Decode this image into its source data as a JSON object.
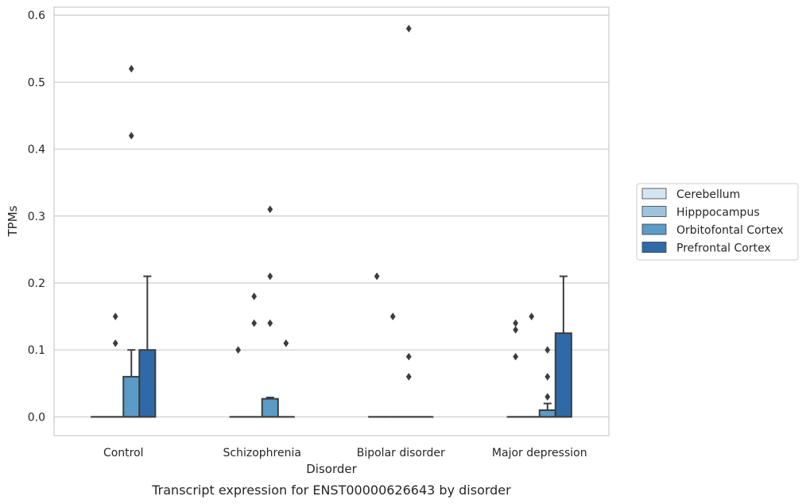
{
  "chart_data": {
    "type": "box",
    "xlabel": "Disorder",
    "ylabel": "TPMs",
    "caption": "Transcript expression for ENST00000626643 by disorder",
    "ylim": [
      -0.028,
      0.612
    ],
    "yticks": [
      "0.0",
      "0.1",
      "0.2",
      "0.3",
      "0.4",
      "0.5",
      "0.6"
    ],
    "yticks_values": [
      0.0,
      0.1,
      0.2,
      0.3,
      0.4,
      0.5,
      0.6
    ],
    "grid": "horizontal",
    "legend_position": "right",
    "categories": [
      "Control",
      "Schizophrenia",
      "Bipolar disorder",
      "Major depression"
    ],
    "series": [
      {
        "name": "Cerebellum",
        "color": "#d4e4f2",
        "boxes": [
          {
            "q1": 0,
            "median": 0,
            "q3": 0,
            "whislo": 0,
            "whishi": 0,
            "fliers": []
          },
          {
            "q1": 0,
            "median": 0,
            "q3": 0,
            "whislo": 0,
            "whishi": 0,
            "fliers": [
              0.1
            ]
          },
          {
            "q1": 0,
            "median": 0,
            "q3": 0,
            "whislo": 0,
            "whishi": 0,
            "fliers": [
              0.21
            ]
          },
          {
            "q1": 0,
            "median": 0,
            "q3": 0,
            "whislo": 0,
            "whishi": 0,
            "fliers": [
              0.14,
              0.13,
              0.09
            ]
          }
        ]
      },
      {
        "name": "Hipppocampus",
        "color": "#9ec4de",
        "boxes": [
          {
            "q1": 0,
            "median": 0,
            "q3": 0,
            "whislo": 0,
            "whishi": 0,
            "fliers": [
              0.15,
              0.11
            ]
          },
          {
            "q1": 0,
            "median": 0,
            "q3": 0,
            "whislo": 0,
            "whishi": 0,
            "fliers": [
              0.18,
              0.14
            ]
          },
          {
            "q1": 0,
            "median": 0,
            "q3": 0,
            "whislo": 0,
            "whishi": 0,
            "fliers": [
              0.15
            ]
          },
          {
            "q1": 0,
            "median": 0,
            "q3": 0,
            "whislo": 0,
            "whishi": 0,
            "fliers": [
              0.15
            ]
          }
        ]
      },
      {
        "name": "Orbitofontal Cortex",
        "color": "#5a9bc8",
        "boxes": [
          {
            "q1": 0,
            "median": 0,
            "q3": 0.06,
            "whislo": 0,
            "whishi": 0.1,
            "fliers": [
              0.52,
              0.42
            ]
          },
          {
            "q1": 0,
            "median": 0,
            "q3": 0.027,
            "whislo": 0,
            "whishi": 0.029,
            "fliers": [
              0.31,
              0.21,
              0.14
            ]
          },
          {
            "q1": 0,
            "median": 0,
            "q3": 0,
            "whislo": 0,
            "whishi": 0,
            "fliers": [
              0.58,
              0.09,
              0.06
            ]
          },
          {
            "q1": 0,
            "median": 0,
            "q3": 0.01,
            "whislo": 0,
            "whishi": 0.02,
            "fliers": [
              0.1,
              0.06,
              0.03
            ]
          }
        ]
      },
      {
        "name": "Prefrontal Cortex",
        "color": "#2e6aa7",
        "boxes": [
          {
            "q1": 0,
            "median": 0,
            "q3": 0.1,
            "whislo": 0,
            "whishi": 0.21,
            "fliers": []
          },
          {
            "q1": 0,
            "median": 0,
            "q3": 0,
            "whislo": 0,
            "whishi": 0,
            "fliers": [
              0.11
            ]
          },
          {
            "q1": 0,
            "median": 0,
            "q3": 0,
            "whislo": 0,
            "whishi": 0,
            "fliers": []
          },
          {
            "q1": 0,
            "median": 0,
            "q3": 0.125,
            "whislo": 0,
            "whishi": 0.21,
            "fliers": []
          }
        ]
      }
    ]
  }
}
